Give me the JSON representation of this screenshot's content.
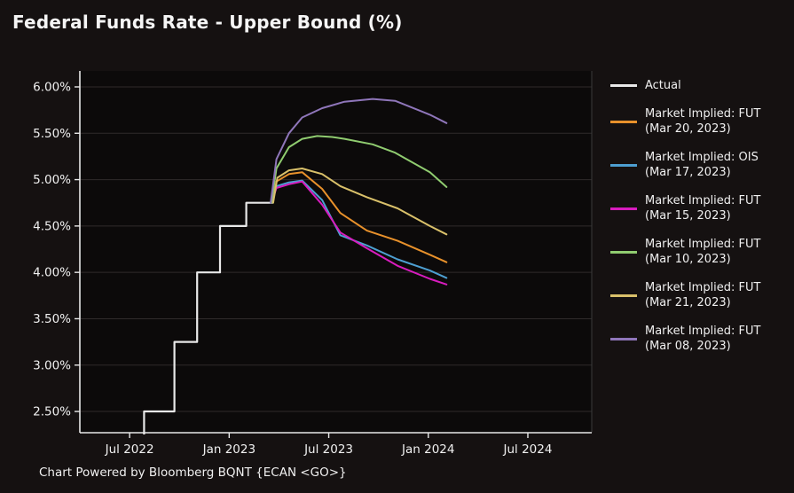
{
  "header": {
    "title": "Federal Funds Rate - Upper Bound (%)"
  },
  "footer": {
    "text": "Chart Powered by Bloomberg BQNT {ECAN <GO>}"
  },
  "colors": {
    "background": "#151111",
    "plot_face": "#0c0a0a",
    "grid": "#2f2b2b",
    "spine": "#e8e8e8",
    "spine_faint": "#3a3a3a",
    "text": "#f0f0f0"
  },
  "legend": [
    {
      "color": "#e8e8e8",
      "lines": [
        "Actual"
      ]
    },
    {
      "color": "#e8912b",
      "lines": [
        "Market Implied: FUT",
        "(Mar 20, 2023)"
      ]
    },
    {
      "color": "#4d9fd1",
      "lines": [
        "Market Implied: OIS",
        "(Mar 17, 2023)"
      ]
    },
    {
      "color": "#d81cbe",
      "lines": [
        "Market Implied: FUT",
        "(Mar 15, 2023)"
      ]
    },
    {
      "color": "#90cc70",
      "lines": [
        "Market Implied: FUT",
        "(Mar 10, 2023)"
      ]
    },
    {
      "color": "#d9c06a",
      "lines": [
        "Market Implied: FUT",
        "(Mar 21, 2023)"
      ]
    },
    {
      "color": "#8f76ba",
      "lines": [
        "Market Implied: FUT",
        "(Mar 08, 2023)"
      ]
    }
  ],
  "chart_data": {
    "type": "line",
    "title": "Federal Funds Rate - Upper Bound (%)",
    "xlabel": "",
    "ylabel": "",
    "x_unit": "months since Jan 2022 (6 = Jul 2022)",
    "x_domain": [
      3.0,
      33.85
    ],
    "y_domain": [
      2.271,
      6.172
    ],
    "grid": "horizontal",
    "legend_position": "right",
    "x_ticks": [
      {
        "pos": 6,
        "label": "Jul 2022"
      },
      {
        "pos": 12,
        "label": "Jan 2023"
      },
      {
        "pos": 18,
        "label": "Jul 2023"
      },
      {
        "pos": 24,
        "label": "Jan 2024"
      },
      {
        "pos": 30,
        "label": "Jul 2024"
      }
    ],
    "y_ticks": [
      {
        "pos": 2.5,
        "label": "2.50%"
      },
      {
        "pos": 3.0,
        "label": "3.00%"
      },
      {
        "pos": 3.5,
        "label": "3.50%"
      },
      {
        "pos": 4.0,
        "label": "4.00%"
      },
      {
        "pos": 4.5,
        "label": "4.50%"
      },
      {
        "pos": 5.0,
        "label": "5.00%"
      },
      {
        "pos": 5.5,
        "label": "5.50%"
      },
      {
        "pos": 6.0,
        "label": "6.00%"
      }
    ],
    "series": [
      {
        "name": "Actual",
        "color": "#e8e8e8",
        "width": 2.2,
        "step": true,
        "points": [
          [
            6.0,
            1.75
          ],
          [
            6.87,
            1.75
          ],
          [
            6.87,
            2.5
          ],
          [
            8.7,
            2.5
          ],
          [
            8.7,
            3.25
          ],
          [
            10.07,
            3.25
          ],
          [
            10.07,
            4.0
          ],
          [
            11.45,
            4.0
          ],
          [
            11.45,
            4.5
          ],
          [
            13.03,
            4.5
          ],
          [
            13.03,
            4.75
          ],
          [
            14.6,
            4.75
          ]
        ]
      },
      {
        "name": "Market Implied: FUT (Mar 20, 2023)",
        "color": "#e8912b",
        "width": 2,
        "points": [
          [
            14.6,
            4.75
          ],
          [
            14.85,
            4.98
          ],
          [
            15.6,
            5.06
          ],
          [
            16.4,
            5.08
          ],
          [
            17.6,
            4.9
          ],
          [
            18.7,
            4.64
          ],
          [
            20.3,
            4.45
          ],
          [
            22.15,
            4.34
          ],
          [
            24.1,
            4.19
          ],
          [
            25.1,
            4.11
          ]
        ]
      },
      {
        "name": "Market Implied: OIS (Mar 17, 2023)",
        "color": "#4d9fd1",
        "width": 2,
        "points": [
          [
            14.6,
            4.75
          ],
          [
            14.85,
            4.93
          ],
          [
            15.6,
            4.97
          ],
          [
            16.4,
            4.99
          ],
          [
            17.6,
            4.78
          ],
          [
            18.7,
            4.4
          ],
          [
            20.3,
            4.29
          ],
          [
            22.15,
            4.14
          ],
          [
            24.1,
            4.02
          ],
          [
            25.1,
            3.94
          ]
        ]
      },
      {
        "name": "Market Implied: FUT (Mar 15, 2023)",
        "color": "#d81cbe",
        "width": 2,
        "points": [
          [
            14.55,
            4.75
          ],
          [
            14.85,
            4.91
          ],
          [
            15.6,
            4.95
          ],
          [
            16.4,
            4.98
          ],
          [
            17.6,
            4.73
          ],
          [
            18.7,
            4.43
          ],
          [
            20.3,
            4.26
          ],
          [
            22.15,
            4.07
          ],
          [
            24.1,
            3.93
          ],
          [
            25.1,
            3.87
          ]
        ]
      },
      {
        "name": "Market Implied: FUT (Mar 10, 2023)",
        "color": "#90cc70",
        "width": 2,
        "points": [
          [
            14.55,
            4.75
          ],
          [
            14.85,
            5.12
          ],
          [
            15.6,
            5.35
          ],
          [
            16.4,
            5.44
          ],
          [
            17.3,
            5.47
          ],
          [
            18.2,
            5.46
          ],
          [
            18.95,
            5.44
          ],
          [
            20.65,
            5.38
          ],
          [
            22.0,
            5.29
          ],
          [
            24.1,
            5.08
          ],
          [
            25.1,
            4.92
          ]
        ]
      },
      {
        "name": "Market Implied: FUT (Mar 21, 2023)",
        "color": "#d9c06a",
        "width": 2,
        "points": [
          [
            14.65,
            4.75
          ],
          [
            14.9,
            5.02
          ],
          [
            15.6,
            5.1
          ],
          [
            16.4,
            5.12
          ],
          [
            17.6,
            5.06
          ],
          [
            18.7,
            4.93
          ],
          [
            20.3,
            4.81
          ],
          [
            22.15,
            4.69
          ],
          [
            24.1,
            4.5
          ],
          [
            25.1,
            4.41
          ]
        ]
      },
      {
        "name": "Market Implied: FUT (Mar 08, 2023)",
        "color": "#8f76ba",
        "width": 2,
        "points": [
          [
            14.5,
            4.75
          ],
          [
            14.85,
            5.22
          ],
          [
            15.6,
            5.5
          ],
          [
            16.4,
            5.67
          ],
          [
            17.6,
            5.77
          ],
          [
            18.95,
            5.84
          ],
          [
            20.65,
            5.87
          ],
          [
            22.0,
            5.85
          ],
          [
            24.1,
            5.7
          ],
          [
            25.1,
            5.61
          ]
        ]
      }
    ]
  }
}
